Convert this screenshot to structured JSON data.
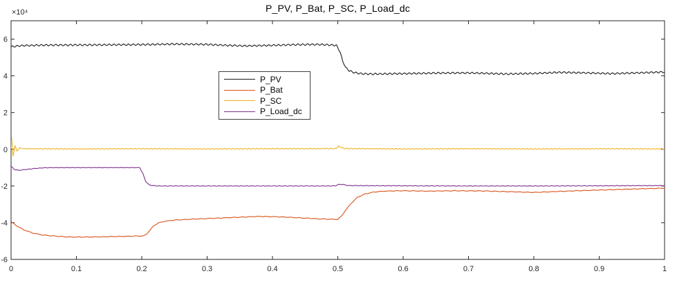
{
  "chart_data": {
    "type": "line",
    "title": "P_PV, P_Bat, P_SC, P_Load_dc",
    "xlabel": "",
    "ylabel": "",
    "xlim": [
      0,
      1
    ],
    "ylim": [
      -6,
      7
    ],
    "grid": false,
    "background_color": "#ffffff",
    "axis_color": "#262626",
    "tick_label_color": "#262626",
    "legend_position": "upper-center-left-inside",
    "y_axis": {
      "tick_values": [
        -6,
        -4,
        -2,
        0,
        2,
        4,
        6
      ],
      "tick_labels": [
        "-6",
        "-4",
        "-2",
        "0",
        "2",
        "4",
        "6"
      ],
      "exponent_label": "×10⁴",
      "scale_exponent": 4
    },
    "x_axis": {
      "tick_values": [
        0,
        0.1,
        0.2,
        0.3,
        0.4,
        0.5,
        0.6,
        0.7,
        0.8,
        0.9,
        1
      ],
      "tick_labels": [
        "0",
        "0.1",
        "0.2",
        "0.3",
        "0.4",
        "0.5",
        "0.6",
        "0.7",
        "0.8",
        "0.9",
        "1"
      ]
    },
    "series": [
      {
        "name": "P_PV",
        "color": "#1a1a1a",
        "line_width": 1.1,
        "ripple": {
          "amp": 0.04,
          "freq": 135,
          "noise": 0.014
        },
        "points": [
          [
            0,
            5.58
          ],
          [
            0.008,
            5.62
          ],
          [
            0.02,
            5.65
          ],
          [
            0.05,
            5.67
          ],
          [
            0.1,
            5.68
          ],
          [
            0.15,
            5.69
          ],
          [
            0.2,
            5.7
          ],
          [
            0.25,
            5.73
          ],
          [
            0.3,
            5.71
          ],
          [
            0.33,
            5.66
          ],
          [
            0.36,
            5.63
          ],
          [
            0.4,
            5.66
          ],
          [
            0.44,
            5.7
          ],
          [
            0.47,
            5.71
          ],
          [
            0.49,
            5.68
          ],
          [
            0.498,
            5.65
          ],
          [
            0.503,
            5.35
          ],
          [
            0.507,
            4.85
          ],
          [
            0.512,
            4.45
          ],
          [
            0.518,
            4.27
          ],
          [
            0.525,
            4.18
          ],
          [
            0.535,
            4.12
          ],
          [
            0.55,
            4.1
          ],
          [
            0.6,
            4.12
          ],
          [
            0.65,
            4.15
          ],
          [
            0.7,
            4.16
          ],
          [
            0.73,
            4.13
          ],
          [
            0.76,
            4.1
          ],
          [
            0.8,
            4.13
          ],
          [
            0.84,
            4.19
          ],
          [
            0.88,
            4.16
          ],
          [
            0.92,
            4.12
          ],
          [
            0.96,
            4.16
          ],
          [
            1,
            4.21
          ]
        ]
      },
      {
        "name": "P_Bat",
        "color": "#D95319",
        "line_width": 1.1,
        "ripple": {
          "amp": 0.012,
          "freq": 80,
          "noise": 0.014
        },
        "points": [
          [
            0,
            -3.95
          ],
          [
            0.004,
            -4.05
          ],
          [
            0.01,
            -4.2
          ],
          [
            0.02,
            -4.4
          ],
          [
            0.035,
            -4.58
          ],
          [
            0.05,
            -4.68
          ],
          [
            0.07,
            -4.74
          ],
          [
            0.09,
            -4.78
          ],
          [
            0.12,
            -4.78
          ],
          [
            0.15,
            -4.76
          ],
          [
            0.18,
            -4.74
          ],
          [
            0.203,
            -4.72
          ],
          [
            0.208,
            -4.6
          ],
          [
            0.213,
            -4.38
          ],
          [
            0.218,
            -4.18
          ],
          [
            0.225,
            -4.02
          ],
          [
            0.235,
            -3.92
          ],
          [
            0.25,
            -3.86
          ],
          [
            0.27,
            -3.82
          ],
          [
            0.31,
            -3.76
          ],
          [
            0.35,
            -3.7
          ],
          [
            0.38,
            -3.66
          ],
          [
            0.41,
            -3.68
          ],
          [
            0.44,
            -3.73
          ],
          [
            0.47,
            -3.79
          ],
          [
            0.5,
            -3.82
          ],
          [
            0.506,
            -3.62
          ],
          [
            0.512,
            -3.32
          ],
          [
            0.52,
            -2.96
          ],
          [
            0.53,
            -2.62
          ],
          [
            0.542,
            -2.43
          ],
          [
            0.555,
            -2.33
          ],
          [
            0.57,
            -2.28
          ],
          [
            0.6,
            -2.26
          ],
          [
            0.64,
            -2.28
          ],
          [
            0.68,
            -2.26
          ],
          [
            0.72,
            -2.27
          ],
          [
            0.76,
            -2.31
          ],
          [
            0.8,
            -2.35
          ],
          [
            0.85,
            -2.28
          ],
          [
            0.9,
            -2.22
          ],
          [
            0.95,
            -2.17
          ],
          [
            1,
            -2.12
          ]
        ]
      },
      {
        "name": "P_SC",
        "color": "#EDB120",
        "line_width": 1.1,
        "ripple": {
          "amp": 0.02,
          "freq": 160,
          "noise": 0.012
        },
        "points": [
          [
            0,
            0.05
          ],
          [
            0.001,
            0.58
          ],
          [
            0.003,
            -0.38
          ],
          [
            0.006,
            0.2
          ],
          [
            0.009,
            -0.1
          ],
          [
            0.013,
            0.07
          ],
          [
            0.02,
            0.03
          ],
          [
            0.1,
            0.02
          ],
          [
            0.2,
            0.03
          ],
          [
            0.3,
            0.02
          ],
          [
            0.4,
            0.03
          ],
          [
            0.497,
            0.04
          ],
          [
            0.501,
            0.17
          ],
          [
            0.505,
            0.1
          ],
          [
            0.51,
            0.04
          ],
          [
            0.6,
            0.02
          ],
          [
            0.7,
            0.03
          ],
          [
            0.8,
            0.02
          ],
          [
            0.9,
            0.03
          ],
          [
            1,
            0.02
          ]
        ]
      },
      {
        "name": "P_Load_dc",
        "color": "#7E2F8E",
        "line_width": 1.1,
        "ripple": {
          "amp": 0.01,
          "freq": 120,
          "noise": 0.009
        },
        "points": [
          [
            0,
            -0.93
          ],
          [
            0.005,
            -1.1
          ],
          [
            0.012,
            -1.15
          ],
          [
            0.02,
            -1.11
          ],
          [
            0.035,
            -1.05
          ],
          [
            0.05,
            -1.01
          ],
          [
            0.07,
            -1
          ],
          [
            0.12,
            -1
          ],
          [
            0.197,
            -1
          ],
          [
            0.202,
            -1.35
          ],
          [
            0.206,
            -1.75
          ],
          [
            0.211,
            -1.93
          ],
          [
            0.217,
            -1.98
          ],
          [
            0.225,
            -2
          ],
          [
            0.3,
            -2
          ],
          [
            0.4,
            -2
          ],
          [
            0.49,
            -2
          ],
          [
            0.497,
            -1.99
          ],
          [
            0.5,
            -1.92
          ],
          [
            0.508,
            -1.91
          ],
          [
            0.514,
            -1.97
          ],
          [
            0.52,
            -1.98
          ],
          [
            0.6,
            -1.99
          ],
          [
            0.7,
            -2
          ],
          [
            0.8,
            -2
          ],
          [
            0.9,
            -1.99
          ],
          [
            1,
            -1.98
          ]
        ]
      }
    ]
  }
}
